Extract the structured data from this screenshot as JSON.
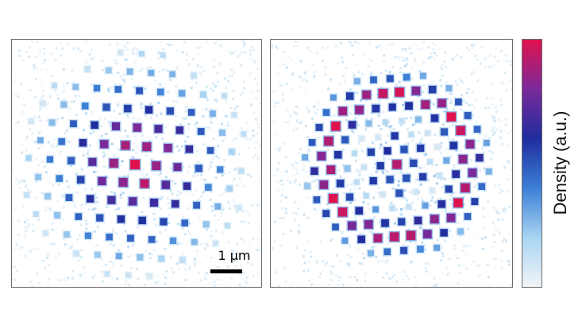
{
  "image": {
    "subject": "atom-density-lattice",
    "panels": [
      {
        "pattern": "filled-disk-triangular-lattice"
      },
      {
        "pattern": "ring-with-central-cluster-triangular-lattice"
      }
    ]
  },
  "scalebar": {
    "label": "1 μm"
  },
  "colorbar": {
    "label": "Density  (a.u.)",
    "colors": [
      "#f2f4f7",
      "#a8d4f2",
      "#3c7fd6",
      "#1f2d9e",
      "#7a2a9a",
      "#e0124e"
    ]
  }
}
